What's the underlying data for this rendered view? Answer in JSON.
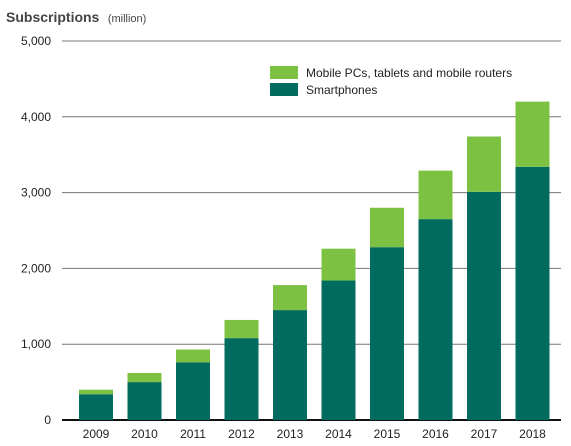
{
  "chart_data": {
    "type": "bar",
    "stacked": true,
    "title": "Subscriptions",
    "title_unit": "(million)",
    "xlabel": "",
    "ylabel": "",
    "categories": [
      "2009",
      "2010",
      "2011",
      "2012",
      "2013",
      "2014",
      "2015",
      "2016",
      "2017",
      "2018"
    ],
    "series": [
      {
        "name": "Smartphones",
        "color": "#006b5e",
        "values": [
          340,
          500,
          760,
          1080,
          1450,
          1840,
          2280,
          2650,
          3010,
          3340
        ]
      },
      {
        "name": "Mobile PCs, tablets and mobile routers",
        "color": "#7cc142",
        "values": [
          60,
          120,
          170,
          240,
          330,
          420,
          520,
          640,
          730,
          860
        ]
      }
    ],
    "ylim": [
      0,
      5000
    ],
    "yticks": [
      0,
      1000,
      2000,
      3000,
      4000,
      5000
    ],
    "ytick_labels": [
      "0",
      "1,000",
      "2,000",
      "3,000",
      "4,000",
      "5,000"
    ],
    "legend": {
      "position": "top-right",
      "entries": [
        {
          "label": "Mobile PCs, tablets and mobile routers",
          "color": "#7cc142"
        },
        {
          "label": "Smartphones",
          "color": "#006b5e"
        }
      ]
    },
    "grid": "horizontal",
    "axis_color": "#111111",
    "grid_color": "#777777"
  }
}
